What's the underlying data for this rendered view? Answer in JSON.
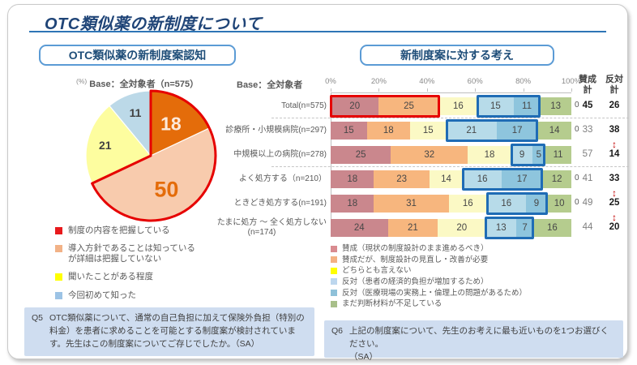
{
  "title": "OTC類似薬の新制度について",
  "left_panel": {
    "header": "OTC類似薬の新制度案認知",
    "base_note_pct": "(%)",
    "base_note": "Base：全対象者（n=575）",
    "question": {
      "label": "Q5",
      "text": "OTC類似薬について、通常の自己負担に加えて保険外負担（特別の料金）を患者に求めることを可能とする制度案が検討されています。先生はこの制度案についてご存じでしたか。（SA）"
    }
  },
  "right_panel": {
    "header": "新制度案に対する考え",
    "base_note": "Base：全対象者",
    "col_headers": {
      "approve": "賛成\n計",
      "oppose": "反対\n計"
    },
    "question": {
      "label": "Q6",
      "text": "上記の制度案について、先生のお考えに最も近いものを1つお選びください。\n（SA）"
    }
  },
  "chart_data": [
    {
      "type": "pie",
      "title": "OTC類似薬の新制度案認知",
      "unit": "%",
      "base": "全対象者 (n=575)",
      "values": [
        18,
        50,
        21,
        11
      ],
      "colors": [
        "#e46c0a",
        "#f8cbad",
        "#fdfd9f",
        "#bcd9e8"
      ],
      "label_colors": [
        "#fde9da",
        "#e46c0a",
        "#424242",
        "#424242"
      ],
      "label_sizes": [
        23,
        27,
        14,
        14
      ],
      "label_radii": [
        0.58,
        0.57,
        0.72,
        0.7
      ],
      "outline_slices": [
        0,
        1
      ],
      "outline_color": "#e60000",
      "legend": [
        {
          "text": "制度の内容を把握している",
          "color": "#e8191c"
        },
        {
          "text": "導入方針であることは知っている\nが詳細は把握していない",
          "color": "#f2b287"
        },
        {
          "text": "聞いたことがある程度",
          "color": "#ffff00"
        },
        {
          "text": "今回初めて知った",
          "color": "#9cc3e5"
        }
      ]
    },
    {
      "type": "stacked-bar-horizontal",
      "title": "新制度案に対する考え",
      "x_axis_ticks": [
        "0%",
        "20%",
        "40%",
        "60%",
        "80%",
        "100%"
      ],
      "colors": [
        "#ca878d",
        "#f7b67e",
        "#fbf9c5",
        "#b7dbe9",
        "#8ec5dd",
        "#b5cc8e"
      ],
      "rows": [
        {
          "label": "Total(n=575)",
          "values": [
            20,
            25,
            16,
            15,
            11,
            13
          ],
          "extra_zero": true,
          "approve_total": 45,
          "oppose_total": 26,
          "approve_bold": true,
          "red_outline": [
            0,
            1
          ],
          "blue_outline": [
            3,
            4
          ]
        },
        {
          "label": "診療所・小規模病院(n=297)",
          "values": [
            15,
            18,
            15,
            21,
            17,
            14
          ],
          "extra_zero": true,
          "approve_total": 33,
          "oppose_total": 38,
          "blue_outline": [
            3,
            4
          ]
        },
        {
          "label": "中規模以上の病院(n=278)",
          "values": [
            25,
            32,
            18,
            9,
            5,
            11
          ],
          "extra_zero": false,
          "approve_total": 57,
          "oppose_total": 14,
          "blue_outline": [
            3,
            4
          ]
        },
        {
          "label": "よく処方する（n=210）",
          "values": [
            18,
            23,
            14,
            16,
            17,
            12
          ],
          "extra_zero": true,
          "approve_total": 41,
          "oppose_total": 33,
          "blue_outline": [
            3,
            4
          ]
        },
        {
          "label": "ときどき処方する(n=191)",
          "values": [
            18,
            31,
            16,
            16,
            9,
            10
          ],
          "extra_zero": true,
          "approve_total": 49,
          "oppose_total": 25,
          "blue_outline": [
            3,
            4
          ]
        },
        {
          "label": "たまに処方 ～ 全く処方しない",
          "label2": "(n=174)",
          "values": [
            24,
            21,
            20,
            13,
            7,
            16
          ],
          "extra_zero": false,
          "approve_total": 44,
          "oppose_total": 20,
          "blue_outline": [
            3,
            4
          ]
        }
      ],
      "separators_after_rows": [
        0,
        2
      ],
      "arrows_between": [
        [
          1,
          2
        ],
        [
          3,
          4
        ],
        [
          4,
          5
        ]
      ],
      "arrow_glyph": "↕",
      "legend": [
        {
          "text": "賛成（現状の制度設計のまま進めるべき）",
          "color": "#d98b90"
        },
        {
          "text": "賛成だが、制度設計の見直し・改善が必要",
          "color": "#f4b183"
        },
        {
          "text": "どちらとも言えない",
          "color": "#ffff00"
        },
        {
          "text": "反対（患者の経済的負担が増加するため）",
          "color": "#bdd7ee"
        },
        {
          "text": "反対（医療現場の実務上・倫理上の問題があるため）",
          "color": "#8fc1d9"
        },
        {
          "text": "まだ判断材料が不足している",
          "color": "#a8bf8a"
        }
      ]
    }
  ]
}
